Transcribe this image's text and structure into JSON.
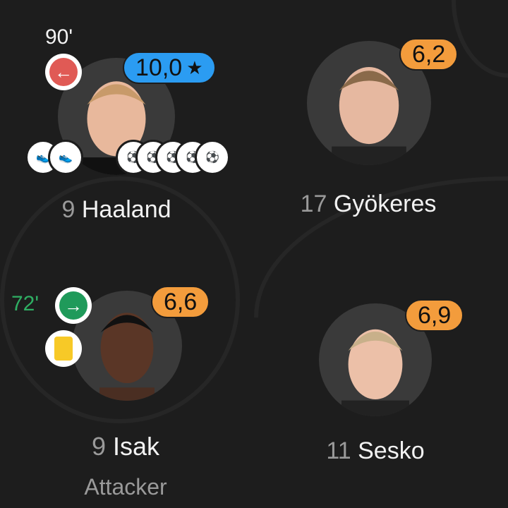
{
  "players": [
    {
      "number": "9",
      "name": "Haaland",
      "rating": "10,0",
      "rating_icon": "star-icon",
      "rating_color": "#2b9cf2",
      "sub_minute": "90'",
      "sub_direction": "out",
      "sub_color": "#e05a55",
      "assists": 2,
      "goals": 5
    },
    {
      "number": "17",
      "name": "Gyökeres",
      "rating": "6,2",
      "rating_color": "#f39c3c"
    },
    {
      "number": "9",
      "name": "Isak",
      "position": "Attacker",
      "rating": "6,6",
      "rating_color": "#f39c3c",
      "sub_minute": "72'",
      "sub_direction": "in",
      "sub_color": "#1f9a5a",
      "yellow_card": true
    },
    {
      "number": "11",
      "name": "Sesko",
      "rating": "6,9",
      "rating_color": "#f39c3c"
    }
  ]
}
